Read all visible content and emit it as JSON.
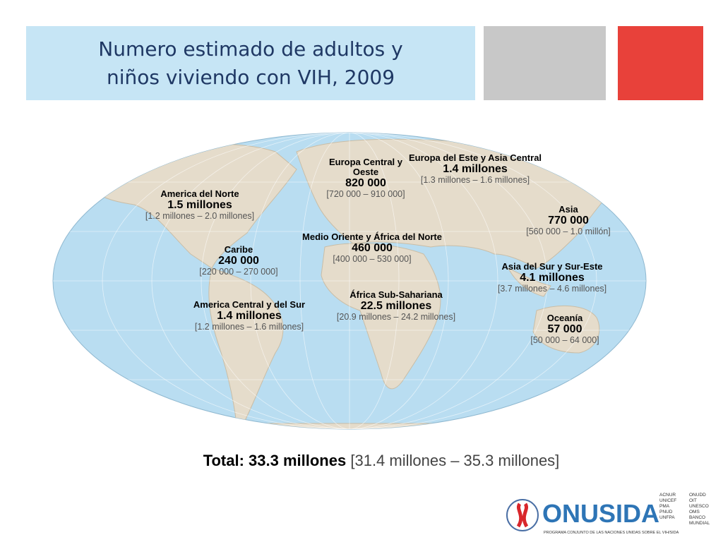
{
  "header": {
    "title_lines": [
      "Numero estimado de adultos y",
      "niños viviendo con VIH, 2009"
    ]
  },
  "regions": [
    {
      "name": "America del Norte",
      "value": "1.5 millones",
      "range": "[1.2 millones – 2.0 millones]"
    },
    {
      "name": "Europa Central y Oeste",
      "value": "820 000",
      "range": "[720 000 – 910 000]"
    },
    {
      "name": "Europa del Este y Asia Central",
      "value": "1.4 millones",
      "range": "[1.3 millones – 1.6 millones]"
    },
    {
      "name": "Asia",
      "value": "770 000",
      "range": "[560 000 – 1.0 millón]"
    },
    {
      "name": "Medio Oriente y África del Norte",
      "value": "460 000",
      "range": "[400 000 – 530 000]"
    },
    {
      "name": "Caribe",
      "value": "240 000",
      "range": "[220 000 – 270 000]"
    },
    {
      "name": "Asia del Sur y Sur-Este",
      "value": "4.1 millones",
      "range": "[3.7 millones – 4.6 millones]"
    },
    {
      "name": "África Sub-Sahariana",
      "value": "22.5 millones",
      "range": "[20.9 millones – 24.2 millones]"
    },
    {
      "name": "America Central y del Sur",
      "value": "1.4 millones",
      "range": "[1.2 millones – 1.6 millones]"
    },
    {
      "name": "Oceanía",
      "value": "57 000",
      "range": "[50 000 – 64 000]"
    }
  ],
  "total": {
    "label": "Total: 33.3 millones",
    "range": "[31.4 millones – 35.3 millones]"
  },
  "logo": {
    "name": "ONUSIDA",
    "subtitle": "PROGRAMA CONJUNTO DE LAS NACIONES UNIDAS SOBRE EL VIH/SIDA",
    "agencies_left": [
      "ACNUR",
      "UNICEF",
      "PMA",
      "PNUD",
      "UNFPA"
    ],
    "agencies_right": [
      "ONUDD",
      "OIT",
      "UNESCO",
      "OMS",
      "BANCO MUNDIAL"
    ]
  }
}
